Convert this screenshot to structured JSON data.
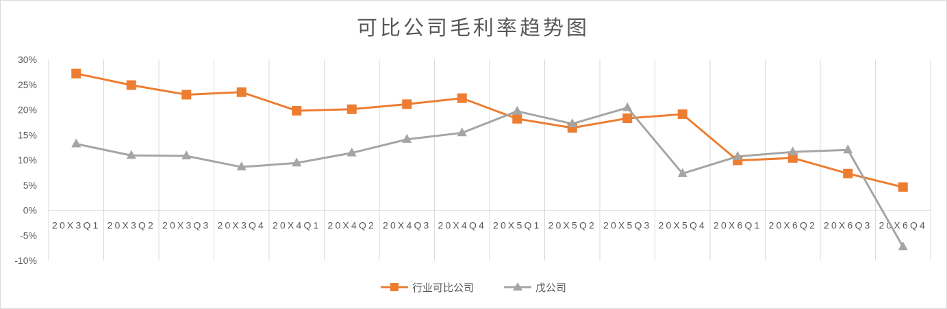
{
  "chart_data": {
    "type": "line",
    "title": "可比公司毛利率趋势图",
    "categories": [
      "20X3Q1",
      "20X3Q2",
      "20X3Q3",
      "20X3Q4",
      "20X4Q1",
      "20X4Q2",
      "20X4Q3",
      "20X4Q4",
      "20X5Q1",
      "20X5Q2",
      "20X5Q3",
      "20X5Q4",
      "20X6Q1",
      "20X6Q2",
      "20X6Q3",
      "20X6Q4"
    ],
    "y_ticks": [
      "30%",
      "25%",
      "20%",
      "15%",
      "10%",
      "5%",
      "0%",
      "-5%",
      "-10%"
    ],
    "ylim": [
      -10,
      30
    ],
    "y_unit": "%",
    "grid": "vertical",
    "legend_position": "bottom",
    "series": [
      {
        "name": "行业可比公司",
        "color": "#ED7D31",
        "marker": "square",
        "values": [
          27.2,
          24.9,
          23.0,
          23.5,
          19.8,
          20.1,
          21.1,
          22.3,
          18.2,
          16.4,
          18.3,
          19.1,
          9.9,
          10.4,
          7.3,
          4.6
        ]
      },
      {
        "name": "戊公司",
        "color": "#A5A5A5",
        "marker": "triangle",
        "values": [
          13.2,
          10.9,
          10.8,
          8.6,
          9.4,
          11.4,
          14.1,
          15.4,
          19.7,
          17.2,
          20.4,
          7.3,
          10.7,
          11.6,
          12.0,
          -7.3
        ]
      }
    ]
  }
}
